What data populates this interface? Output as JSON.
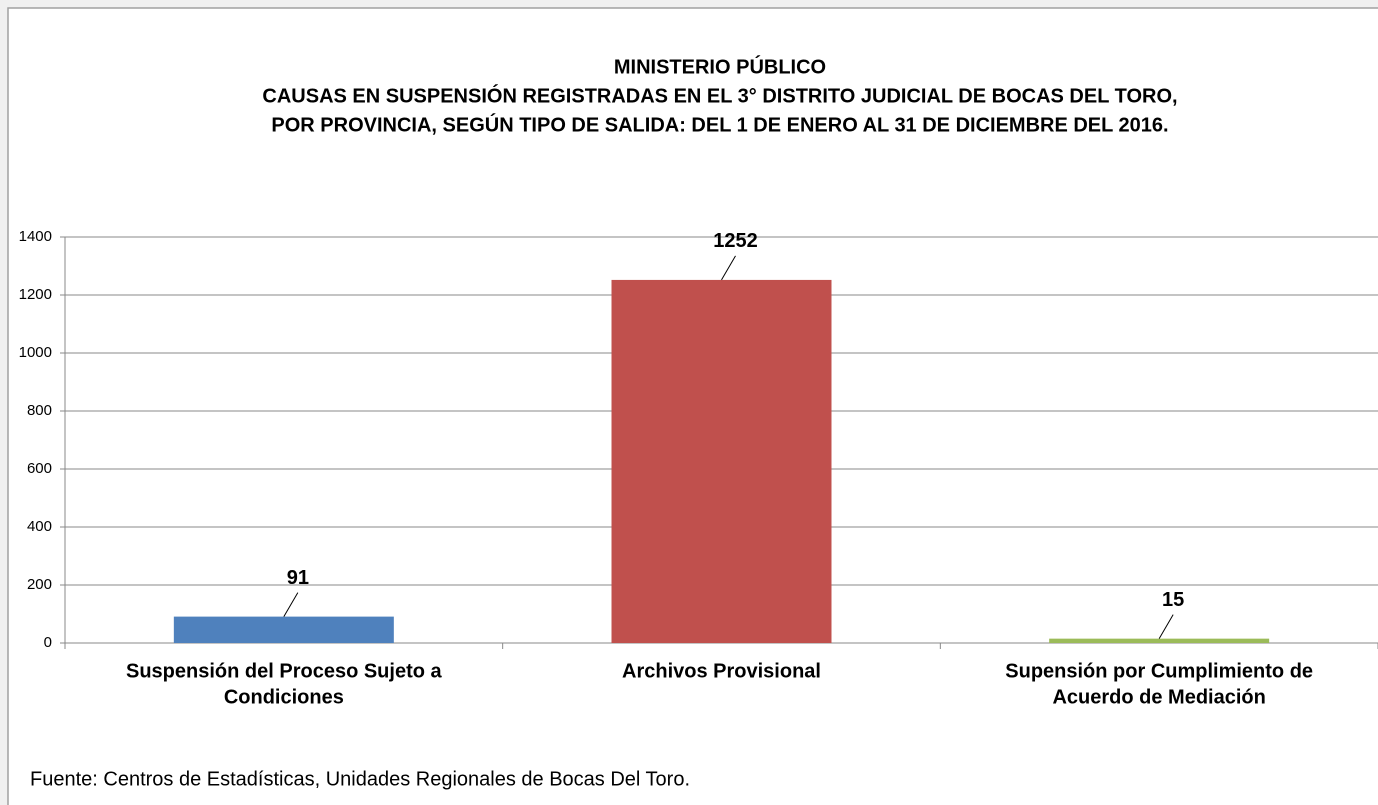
{
  "chart_data": {
    "type": "bar",
    "title": [
      "MINISTERIO PÚBLICO",
      "CAUSAS EN SUSPENSIÓN REGISTRADAS EN EL 3° DISTRITO JUDICIAL DE BOCAS DEL TORO,",
      "POR PROVINCIA, SEGÚN TIPO DE SALIDA: DEL 1 DE ENERO AL 31 DE DICIEMBRE DEL 2016."
    ],
    "categories": [
      [
        "Suspensión del Proceso Sujeto a",
        "Condiciones"
      ],
      [
        "Archivos Provisional"
      ],
      [
        "Supensión por Cumplimiento de",
        "Acuerdo de Mediación"
      ]
    ],
    "values": [
      91,
      1252,
      15
    ],
    "colors": [
      "#4f81bd",
      "#c0504d",
      "#9bbb59"
    ],
    "ylim": [
      0,
      1400
    ],
    "yticks": [
      0,
      200,
      400,
      600,
      800,
      1000,
      1200,
      1400
    ],
    "grid": true,
    "source": "Fuente: Centros de Estadísticas, Unidades Regionales de Bocas Del Toro."
  }
}
